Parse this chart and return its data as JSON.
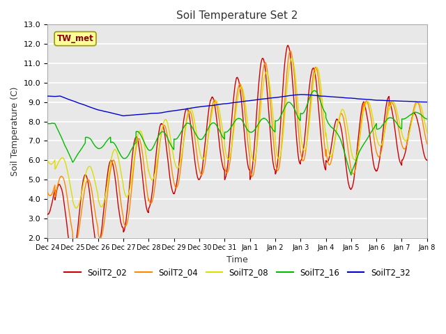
{
  "title": "Soil Temperature Set 2",
  "xlabel": "Time",
  "ylabel": "Soil Temperature (C)",
  "ylim": [
    2.0,
    13.0
  ],
  "yticks": [
    2.0,
    3.0,
    4.0,
    5.0,
    6.0,
    7.0,
    8.0,
    9.0,
    10.0,
    11.0,
    12.0,
    13.0
  ],
  "fig_bg_color": "#ffffff",
  "plot_bg_color": "#e8e8e8",
  "grid_color": "#ffffff",
  "series_colors": {
    "SoilT2_02": "#cc0000",
    "SoilT2_04": "#ff8800",
    "SoilT2_08": "#dddd00",
    "SoilT2_16": "#00bb00",
    "SoilT2_32": "#0000cc"
  },
  "legend_label": "TW_met",
  "legend_box_facecolor": "#ffff99",
  "legend_box_edgecolor": "#999900",
  "tick_labels": [
    "Dec 24",
    "Dec 25",
    "Dec 26",
    "Dec 27",
    "Dec 28",
    "Dec 29",
    "Dec 30",
    "Dec 31",
    "Jan 1",
    "Jan 2",
    "Jan 3",
    "Jan 4",
    "Jan 5",
    "Jan 6",
    "Jan 7",
    "Jan 8"
  ]
}
